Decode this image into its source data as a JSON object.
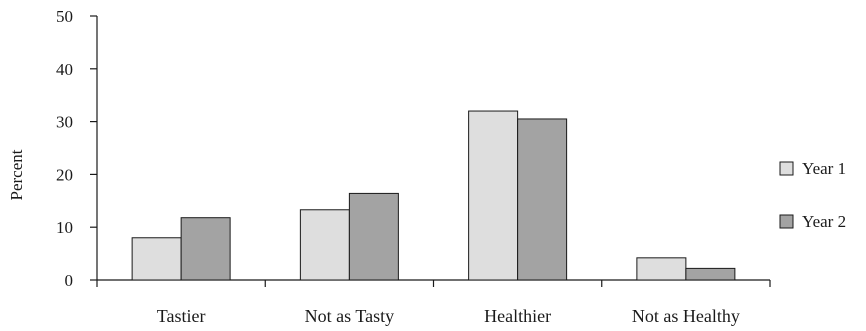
{
  "chart_data": {
    "type": "bar",
    "ylabel": "Percent",
    "xlabel": "",
    "ylim": [
      0,
      50
    ],
    "yticks": [
      0,
      10,
      20,
      30,
      40,
      50
    ],
    "categories": [
      "Tastier",
      "Not as Tasty",
      "Healthier",
      "Not as Healthy"
    ],
    "series": [
      {
        "name": "Year 1",
        "values": [
          8,
          13.3,
          32,
          4.2
        ],
        "color": "#dedede"
      },
      {
        "name": "Year 2",
        "values": [
          11.8,
          16.4,
          30.5,
          2.2
        ],
        "color": "#a3a3a3"
      }
    ],
    "grid": false,
    "legend_position": "right"
  }
}
